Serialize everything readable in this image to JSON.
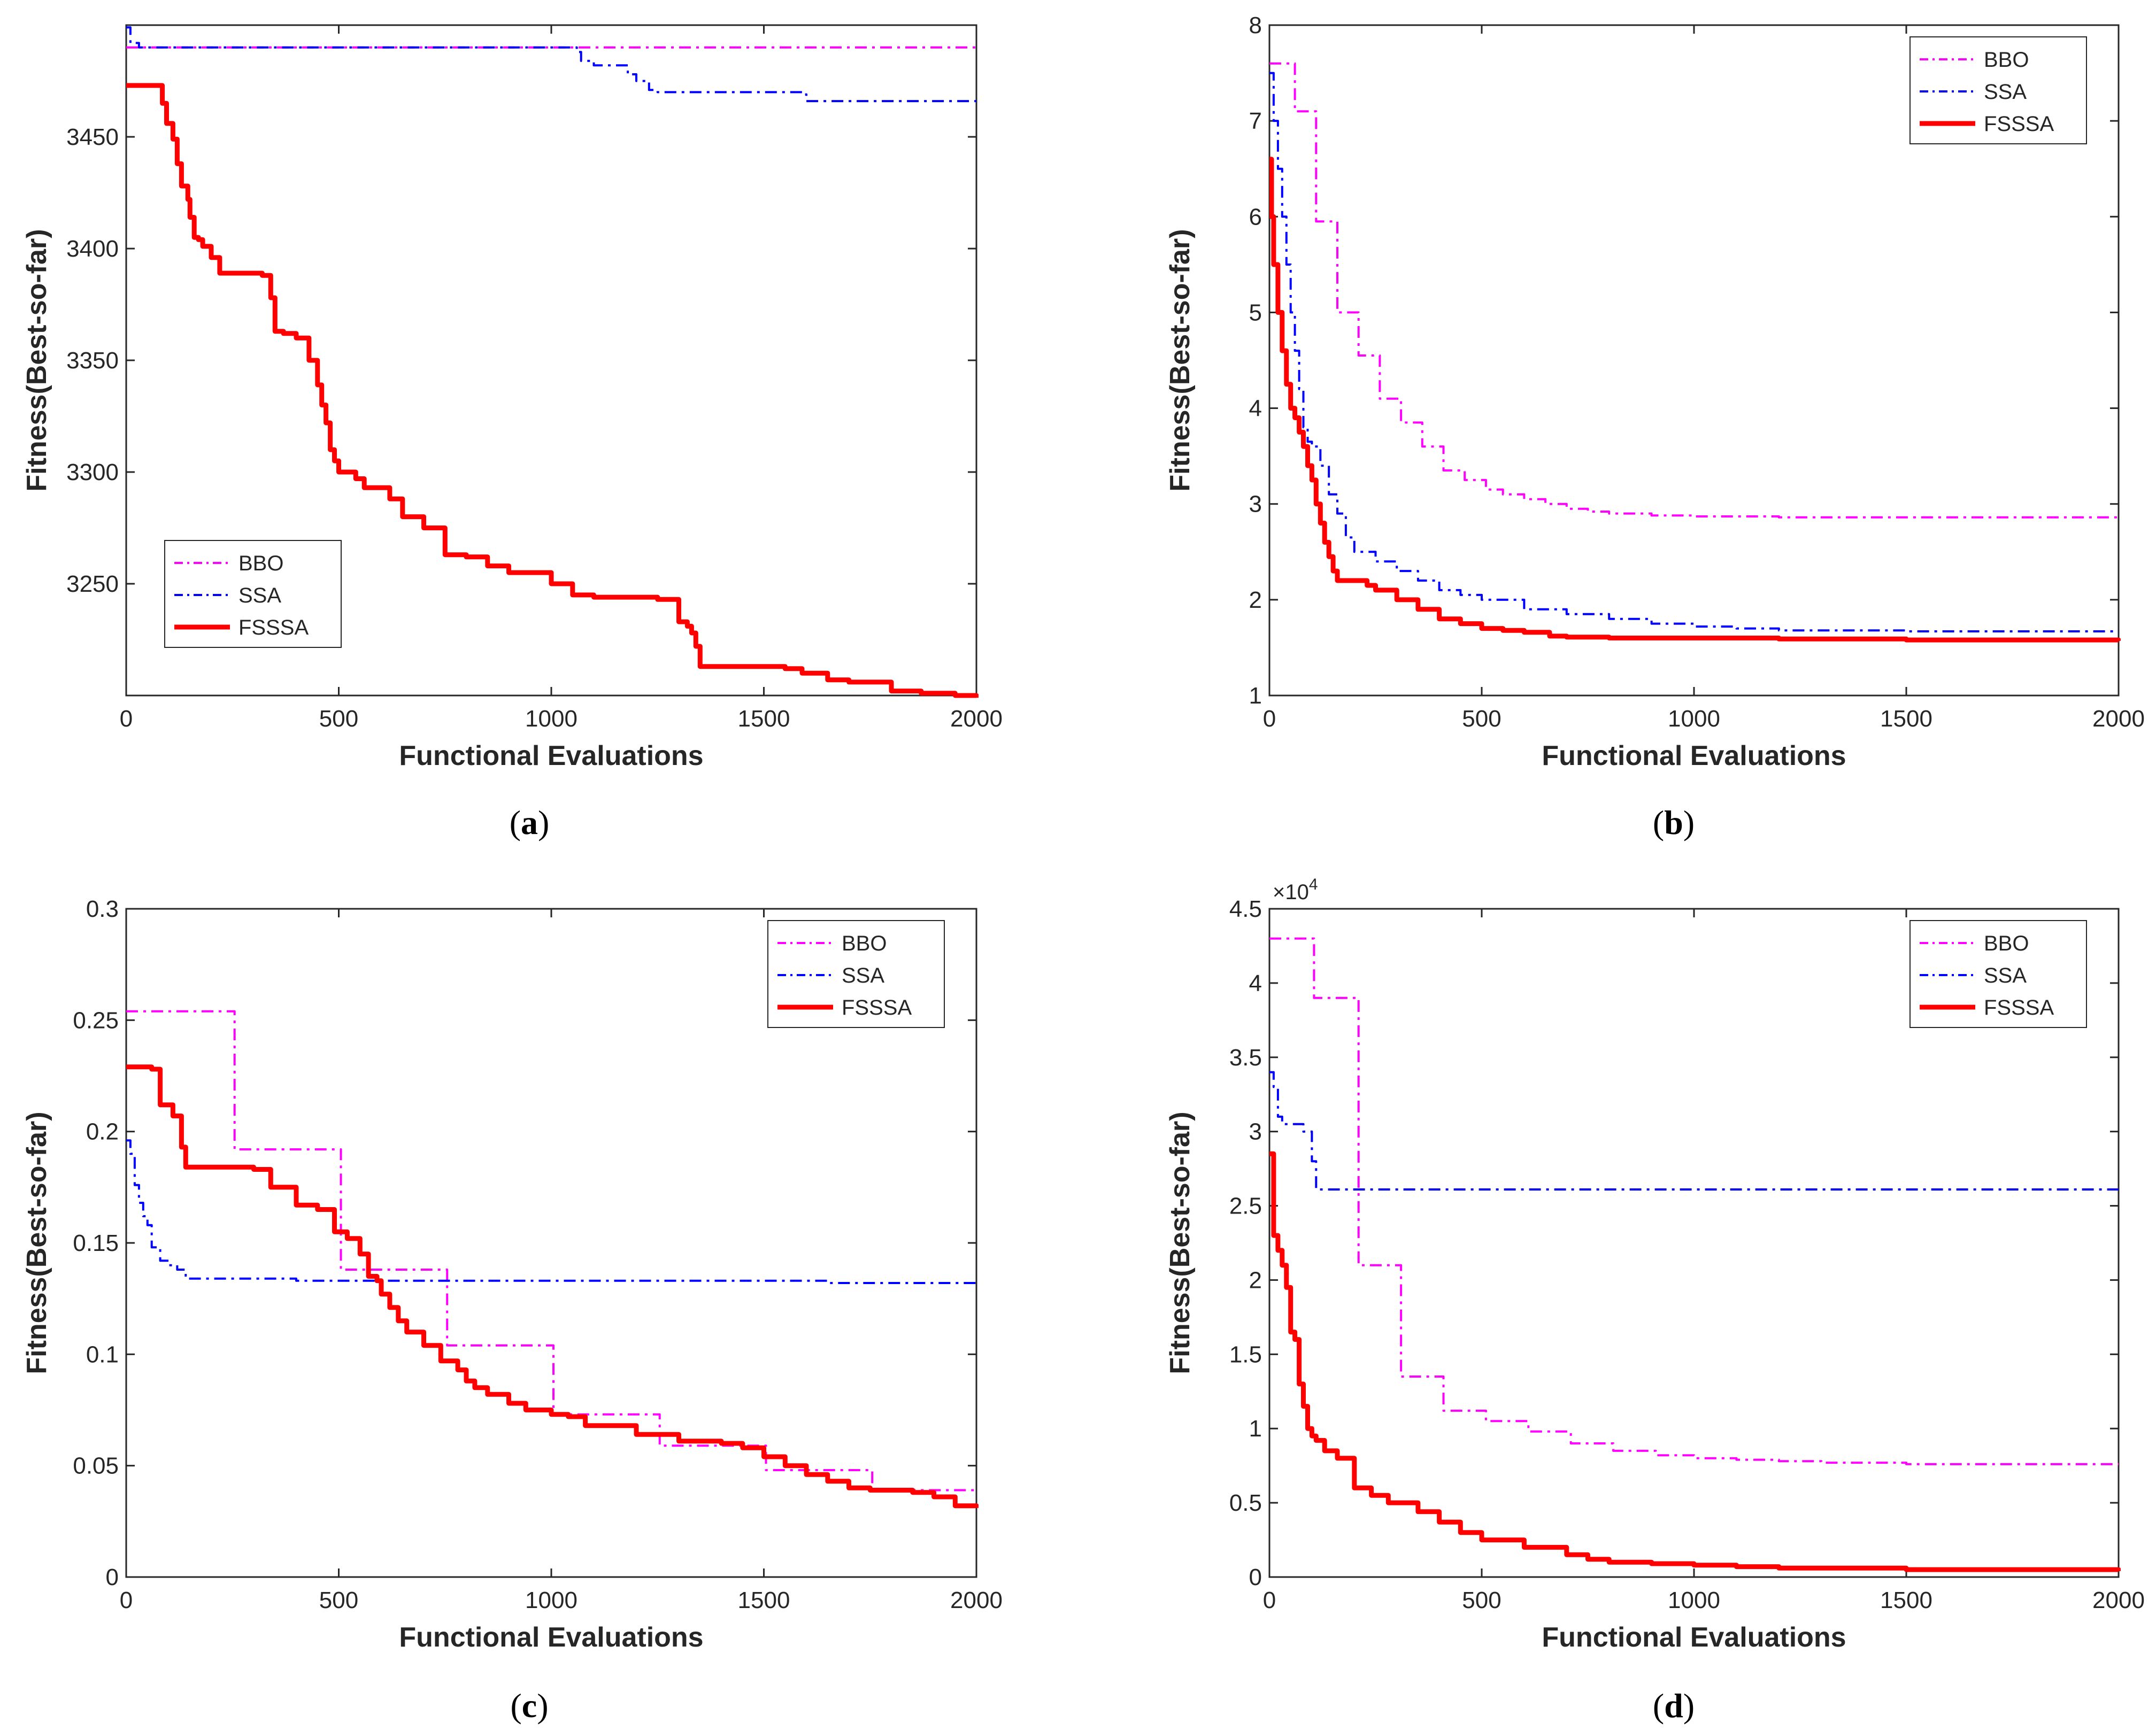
{
  "chart_data": [
    {
      "type": "line",
      "caption": "a",
      "xlabel": "Functional Evaluations",
      "ylabel": "Fitness(Best-so-far)",
      "xlim": [
        0,
        2000
      ],
      "ylim": [
        3200,
        3500
      ],
      "xticks": [
        0,
        500,
        1000,
        1500,
        2000
      ],
      "yticks": [
        3250,
        3300,
        3350,
        3400,
        3450
      ],
      "legend_position": "bottom-left",
      "series": [
        {
          "name": "BBO",
          "color": "#ff00ff",
          "style": "dashdot",
          "x": [
            0,
            2000
          ],
          "y": [
            3490,
            3490
          ]
        },
        {
          "name": "SSA",
          "color": "#0000ff",
          "style": "dashdot",
          "x": [
            0,
            10,
            30,
            1000,
            1060,
            1070,
            1100,
            1150,
            1180,
            1200,
            1230,
            1250,
            1400,
            1590,
            1600,
            2000
          ],
          "y": [
            3499,
            3492,
            3490,
            3490,
            3488,
            3484,
            3482,
            3482,
            3478,
            3475,
            3471,
            3470,
            3470,
            3469,
            3466,
            3466
          ]
        },
        {
          "name": "FSSSA",
          "color": "#ff0000",
          "style": "solid",
          "x": [
            0,
            80,
            85,
            95,
            110,
            120,
            130,
            145,
            150,
            160,
            170,
            180,
            200,
            220,
            240,
            280,
            320,
            340,
            350,
            370,
            400,
            430,
            450,
            460,
            470,
            480,
            490,
            500,
            540,
            560,
            620,
            650,
            700,
            750,
            800,
            850,
            900,
            1000,
            1050,
            1100,
            1200,
            1250,
            1300,
            1320,
            1330,
            1340,
            1350,
            1400,
            1500,
            1550,
            1590,
            1650,
            1700,
            1750,
            1800,
            1870,
            1950,
            2000
          ],
          "y": [
            3473,
            3473,
            3465,
            3456,
            3449,
            3438,
            3428,
            3422,
            3414,
            3405,
            3404,
            3401,
            3396,
            3389,
            3389,
            3389,
            3388,
            3378,
            3363,
            3362,
            3360,
            3350,
            3339,
            3330,
            3322,
            3310,
            3305,
            3300,
            3297,
            3293,
            3288,
            3280,
            3275,
            3263,
            3262,
            3258,
            3255,
            3250,
            3245,
            3244,
            3244,
            3243,
            3233,
            3231,
            3228,
            3222,
            3213,
            3213,
            3213,
            3212,
            3210,
            3207,
            3206,
            3206,
            3202,
            3201,
            3200,
            3199
          ]
        }
      ]
    },
    {
      "type": "line",
      "caption": "b",
      "xlabel": "Functional Evaluations",
      "ylabel": "Fitness(Best-so-far)",
      "xlim": [
        0,
        2000
      ],
      "ylim": [
        1,
        8
      ],
      "xticks": [
        0,
        500,
        1000,
        1500,
        2000
      ],
      "yticks": [
        1,
        2,
        3,
        4,
        5,
        6,
        7,
        8
      ],
      "legend_position": "top-right",
      "series": [
        {
          "name": "BBO",
          "color": "#ff00ff",
          "style": "dashdot",
          "x": [
            0,
            50,
            60,
            100,
            110,
            150,
            160,
            200,
            210,
            250,
            260,
            300,
            310,
            350,
            360,
            400,
            410,
            450,
            460,
            500,
            510,
            550,
            600,
            650,
            700,
            750,
            800,
            900,
            1000,
            1200,
            1500,
            2000
          ],
          "y": [
            7.6,
            7.6,
            7.1,
            7.1,
            5.95,
            5.95,
            5.0,
            5.0,
            4.55,
            4.55,
            4.1,
            4.1,
            3.85,
            3.85,
            3.6,
            3.6,
            3.35,
            3.35,
            3.25,
            3.25,
            3.15,
            3.1,
            3.05,
            3.0,
            2.95,
            2.92,
            2.9,
            2.88,
            2.87,
            2.86,
            2.86,
            2.86
          ]
        },
        {
          "name": "SSA",
          "color": "#0000ff",
          "style": "dashdot",
          "x": [
            0,
            10,
            20,
            30,
            40,
            50,
            60,
            70,
            80,
            90,
            100,
            120,
            140,
            160,
            180,
            200,
            250,
            300,
            350,
            400,
            450,
            500,
            600,
            700,
            800,
            900,
            1000,
            1100,
            1200,
            1500,
            2000
          ],
          "y": [
            7.5,
            7.0,
            6.5,
            6.0,
            5.5,
            5.0,
            4.6,
            4.2,
            3.8,
            3.65,
            3.6,
            3.4,
            3.1,
            2.9,
            2.65,
            2.5,
            2.4,
            2.3,
            2.2,
            2.1,
            2.05,
            2.0,
            1.9,
            1.85,
            1.8,
            1.75,
            1.72,
            1.7,
            1.68,
            1.67,
            1.67
          ]
        },
        {
          "name": "FSSSA",
          "color": "#ff0000",
          "style": "solid",
          "x": [
            0,
            5,
            10,
            20,
            30,
            40,
            50,
            60,
            70,
            80,
            90,
            100,
            110,
            120,
            130,
            140,
            150,
            160,
            200,
            230,
            250,
            300,
            350,
            400,
            450,
            500,
            550,
            600,
            660,
            700,
            800,
            1000,
            1200,
            1500,
            2000
          ],
          "y": [
            6.6,
            6.0,
            5.5,
            5.0,
            4.6,
            4.25,
            4.0,
            3.9,
            3.75,
            3.6,
            3.4,
            3.25,
            3.0,
            2.8,
            2.6,
            2.45,
            2.3,
            2.2,
            2.2,
            2.15,
            2.1,
            2.0,
            1.9,
            1.8,
            1.75,
            1.7,
            1.68,
            1.66,
            1.62,
            1.61,
            1.6,
            1.6,
            1.59,
            1.58,
            1.57
          ]
        }
      ]
    },
    {
      "type": "line",
      "caption": "c",
      "xlabel": "Functional Evaluations",
      "ylabel": "Fitness(Best-so-far)",
      "xlim": [
        0,
        2000
      ],
      "ylim": [
        0,
        0.3
      ],
      "xticks": [
        0,
        500,
        1000,
        1500,
        2000
      ],
      "yticks": [
        0,
        0.05,
        0.1,
        0.15,
        0.2,
        0.25,
        0.3
      ],
      "legend_position": "top-right",
      "series": [
        {
          "name": "BBO",
          "color": "#ff00ff",
          "style": "dashdot",
          "x": [
            0,
            250,
            255,
            500,
            505,
            750,
            755,
            1000,
            1005,
            1250,
            1255,
            1500,
            1505,
            1750,
            1755,
            2000
          ],
          "y": [
            0.254,
            0.254,
            0.192,
            0.192,
            0.138,
            0.138,
            0.104,
            0.104,
            0.073,
            0.073,
            0.059,
            0.059,
            0.048,
            0.048,
            0.039,
            0.039
          ]
        },
        {
          "name": "SSA",
          "color": "#0000ff",
          "style": "dashdot",
          "x": [
            0,
            10,
            20,
            30,
            40,
            50,
            60,
            80,
            100,
            120,
            140,
            200,
            400,
            1000,
            1500,
            1650,
            1700,
            2000
          ],
          "y": [
            0.196,
            0.19,
            0.176,
            0.168,
            0.162,
            0.158,
            0.148,
            0.142,
            0.14,
            0.138,
            0.134,
            0.134,
            0.133,
            0.133,
            0.133,
            0.132,
            0.132,
            0.131
          ]
        },
        {
          "name": "FSSSA",
          "color": "#ff0000",
          "style": "solid",
          "x": [
            0,
            60,
            80,
            110,
            130,
            140,
            190,
            230,
            300,
            340,
            400,
            450,
            490,
            520,
            550,
            570,
            590,
            600,
            620,
            640,
            660,
            700,
            740,
            780,
            800,
            820,
            850,
            900,
            940,
            1000,
            1040,
            1080,
            1200,
            1300,
            1400,
            1450,
            1500,
            1550,
            1600,
            1650,
            1700,
            1750,
            1850,
            1900,
            1950,
            2000
          ],
          "y": [
            0.229,
            0.228,
            0.212,
            0.207,
            0.193,
            0.184,
            0.184,
            0.184,
            0.183,
            0.175,
            0.167,
            0.165,
            0.155,
            0.152,
            0.145,
            0.135,
            0.133,
            0.127,
            0.121,
            0.115,
            0.11,
            0.104,
            0.097,
            0.093,
            0.088,
            0.085,
            0.082,
            0.078,
            0.075,
            0.073,
            0.072,
            0.068,
            0.064,
            0.061,
            0.06,
            0.058,
            0.054,
            0.05,
            0.046,
            0.043,
            0.04,
            0.039,
            0.038,
            0.036,
            0.032,
            0.031
          ]
        }
      ]
    },
    {
      "type": "line",
      "caption": "d",
      "xlabel": "Functional Evaluations",
      "ylabel": "Fitness(Best-so-far)",
      "y_multiplier": "×10",
      "y_multiplier_exponent": "4",
      "xlim": [
        0,
        2000
      ],
      "ylim": [
        0,
        4.5
      ],
      "xticks": [
        0,
        500,
        1000,
        1500,
        2000
      ],
      "yticks": [
        0,
        0.5,
        1,
        1.5,
        2,
        2.5,
        3,
        3.5,
        4,
        4.5
      ],
      "legend_position": "top-right",
      "series": [
        {
          "name": "BBO",
          "color": "#ff00ff",
          "style": "dashdot",
          "x": [
            0,
            100,
            105,
            200,
            210,
            300,
            310,
            400,
            410,
            500,
            510,
            600,
            610,
            700,
            710,
            800,
            810,
            900,
            910,
            1000,
            1100,
            1200,
            1300,
            1500,
            2000
          ],
          "y": [
            4.3,
            4.3,
            3.9,
            3.9,
            2.1,
            2.1,
            1.35,
            1.35,
            1.12,
            1.12,
            1.05,
            1.05,
            0.98,
            0.98,
            0.9,
            0.9,
            0.85,
            0.85,
            0.82,
            0.8,
            0.79,
            0.78,
            0.77,
            0.76,
            0.76
          ]
        },
        {
          "name": "SSA",
          "color": "#0000ff",
          "style": "dashdot",
          "x": [
            0,
            10,
            20,
            30,
            80,
            95,
            100,
            110,
            2000
          ],
          "y": [
            3.4,
            3.3,
            3.1,
            3.05,
            3.0,
            3.0,
            2.8,
            2.61,
            2.61
          ]
        },
        {
          "name": "FSSSA",
          "color": "#ff0000",
          "style": "solid",
          "x": [
            0,
            10,
            20,
            30,
            40,
            50,
            60,
            70,
            80,
            90,
            100,
            110,
            130,
            160,
            200,
            240,
            280,
            350,
            400,
            450,
            500,
            600,
            700,
            750,
            800,
            900,
            1000,
            1100,
            1200,
            1500,
            2000
          ],
          "y": [
            2.85,
            2.3,
            2.2,
            2.1,
            1.95,
            1.65,
            1.6,
            1.3,
            1.15,
            1.0,
            0.95,
            0.92,
            0.85,
            0.8,
            0.6,
            0.55,
            0.5,
            0.44,
            0.37,
            0.3,
            0.25,
            0.2,
            0.15,
            0.12,
            0.1,
            0.09,
            0.08,
            0.07,
            0.06,
            0.05,
            0.04
          ]
        }
      ]
    }
  ]
}
